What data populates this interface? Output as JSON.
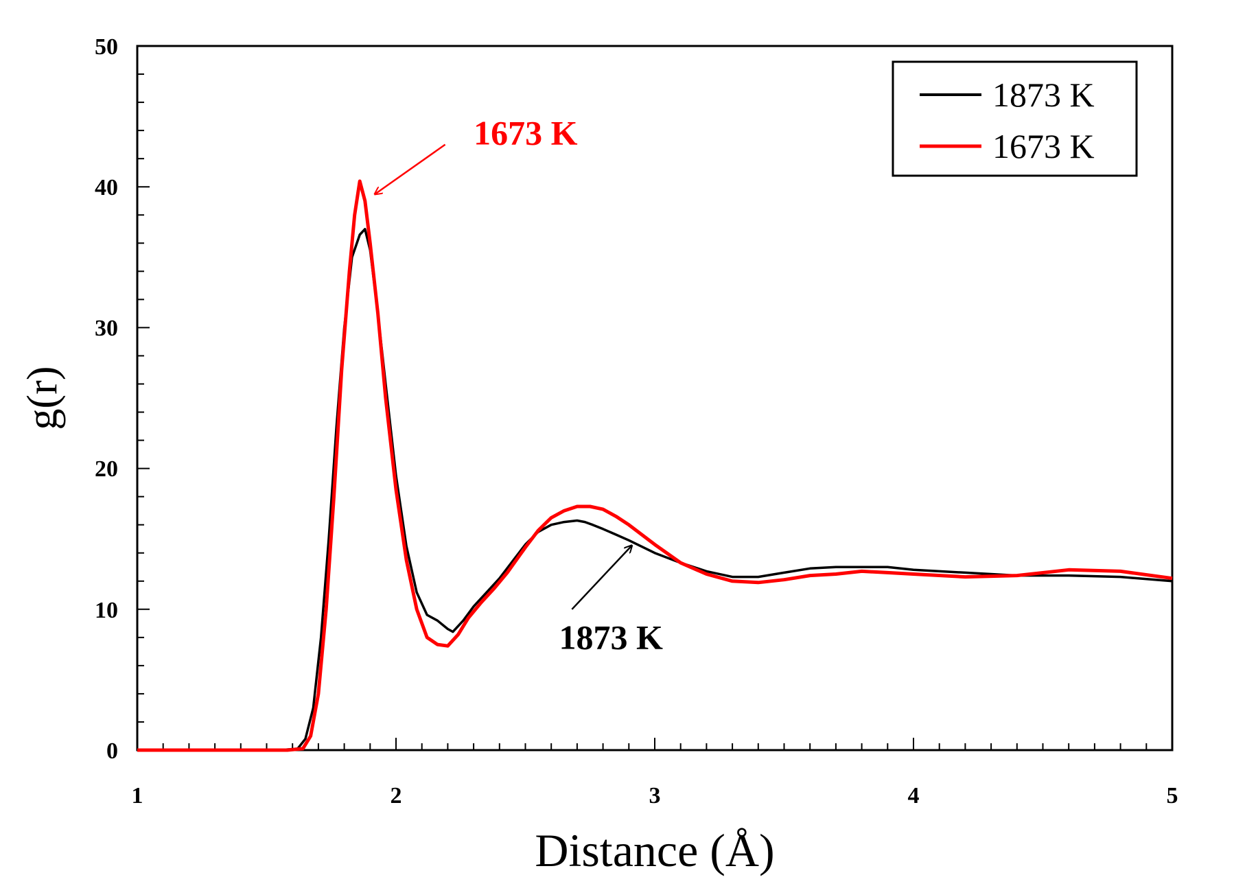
{
  "chart_data": {
    "type": "line",
    "title": "",
    "xlabel": "Distance (Å)",
    "ylabel": "g(r)",
    "xlim": [
      1,
      5
    ],
    "ylim": [
      0,
      50
    ],
    "xticks": [
      "1",
      "2",
      "3",
      "4",
      "5"
    ],
    "yticks": [
      "0",
      "10",
      "20",
      "30",
      "40",
      "50"
    ],
    "grid": false,
    "legend_position": "top-right",
    "series": [
      {
        "name": "1873 K",
        "color": "#000000",
        "x": [
          1.0,
          1.55,
          1.62,
          1.65,
          1.68,
          1.71,
          1.74,
          1.77,
          1.8,
          1.83,
          1.86,
          1.88,
          1.9,
          1.93,
          1.96,
          2.0,
          2.04,
          2.08,
          2.12,
          2.16,
          2.2,
          2.22,
          2.26,
          2.3,
          2.35,
          2.4,
          2.45,
          2.5,
          2.55,
          2.6,
          2.65,
          2.7,
          2.73,
          2.76,
          2.8,
          2.85,
          2.9,
          3.0,
          3.1,
          3.2,
          3.3,
          3.4,
          3.5,
          3.6,
          3.7,
          3.8,
          3.9,
          4.0,
          4.2,
          4.4,
          4.6,
          4.8,
          5.0
        ],
        "y": [
          0,
          0,
          0.1,
          0.8,
          3,
          8,
          15,
          23,
          30,
          35,
          36.6,
          37.0,
          35.5,
          31,
          26,
          19.5,
          14.5,
          11.2,
          9.6,
          9.2,
          8.6,
          8.4,
          9.2,
          10.2,
          11.2,
          12.2,
          13.4,
          14.6,
          15.5,
          16.0,
          16.2,
          16.3,
          16.2,
          16.0,
          15.7,
          15.3,
          14.9,
          14.0,
          13.3,
          12.7,
          12.3,
          12.3,
          12.6,
          12.9,
          13.0,
          13.0,
          13.0,
          12.8,
          12.6,
          12.4,
          12.4,
          12.3,
          12.0
        ]
      },
      {
        "name": "1673 K",
        "color": "#ff0000",
        "x": [
          1.0,
          1.58,
          1.64,
          1.67,
          1.7,
          1.73,
          1.76,
          1.79,
          1.82,
          1.84,
          1.86,
          1.88,
          1.9,
          1.93,
          1.96,
          2.0,
          2.04,
          2.08,
          2.12,
          2.16,
          2.2,
          2.24,
          2.28,
          2.33,
          2.38,
          2.43,
          2.5,
          2.55,
          2.6,
          2.65,
          2.7,
          2.75,
          2.8,
          2.85,
          2.9,
          3.0,
          3.1,
          3.2,
          3.3,
          3.4,
          3.5,
          3.6,
          3.7,
          3.8,
          3.9,
          4.0,
          4.2,
          4.4,
          4.6,
          4.8,
          5.0
        ],
        "y": [
          0,
          0,
          0.1,
          1.0,
          4,
          10,
          18,
          27,
          34,
          38,
          40.4,
          39.0,
          36.0,
          31,
          25,
          18.5,
          13.5,
          10.0,
          8.0,
          7.5,
          7.4,
          8.2,
          9.4,
          10.5,
          11.5,
          12.6,
          14.4,
          15.6,
          16.5,
          17.0,
          17.3,
          17.3,
          17.1,
          16.6,
          16.0,
          14.6,
          13.3,
          12.5,
          12.0,
          11.9,
          12.1,
          12.4,
          12.5,
          12.7,
          12.6,
          12.5,
          12.3,
          12.4,
          12.8,
          12.7,
          12.2
        ]
      }
    ],
    "annotations": [
      {
        "text": "1673 K",
        "color": "#ff0000",
        "x": 2.3,
        "y": 43.0,
        "arrow_from": [
          2.19,
          43.0
        ],
        "arrow_to": [
          1.92,
          39.5
        ]
      },
      {
        "text": "1873 K",
        "color": "#000000",
        "x": 2.63,
        "y": 7.2,
        "arrow_from": [
          2.68,
          10.0
        ],
        "arrow_to": [
          2.91,
          14.5
        ]
      }
    ]
  }
}
